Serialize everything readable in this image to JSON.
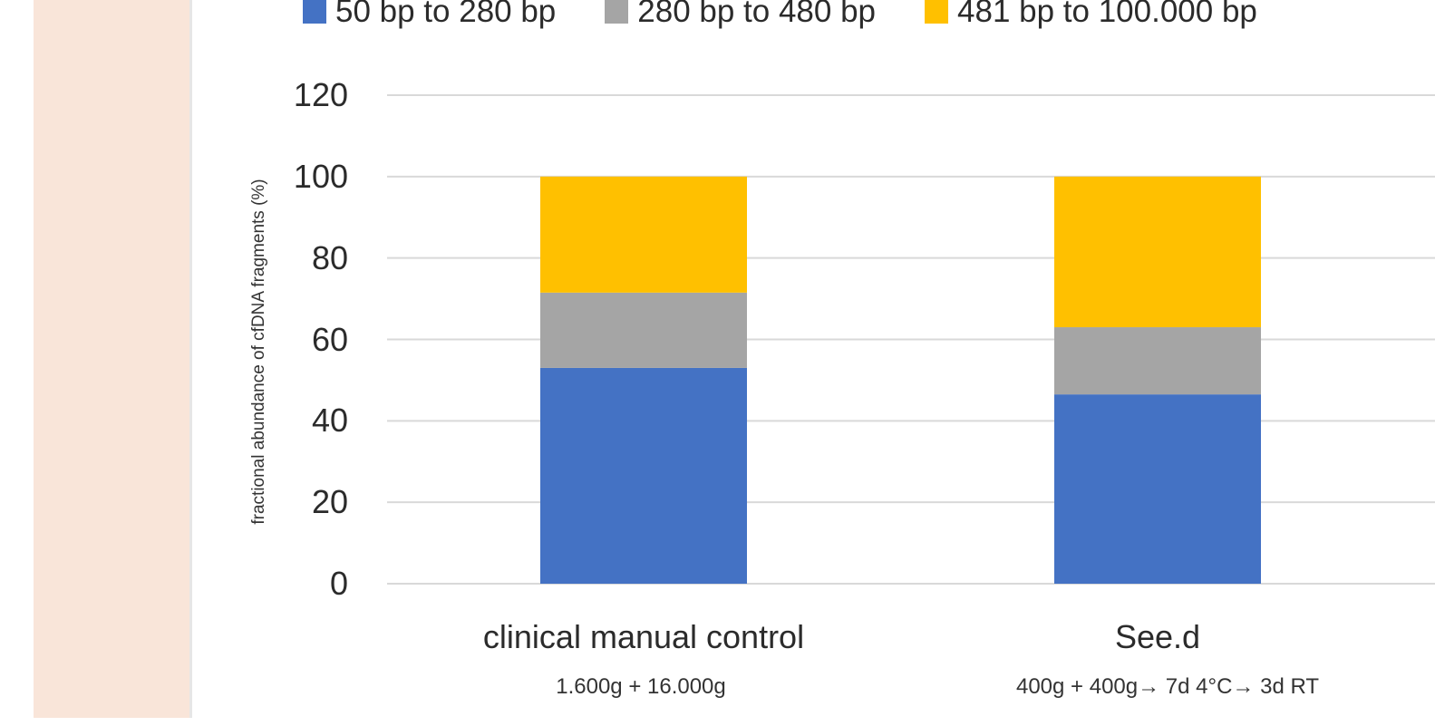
{
  "chart_data": {
    "type": "bar",
    "stacked": true,
    "ylabel": "fractional abundance of cfDNA fragments (%)",
    "xlabel": "",
    "ylim": [
      0,
      120
    ],
    "yticks": [
      0,
      20,
      40,
      60,
      80,
      100,
      120
    ],
    "grid": true,
    "legend_position": "top",
    "categories": [
      "clinical manual control",
      "See.d"
    ],
    "category_sublabels": [
      "1.600g +  16.000g",
      "400g + 400g→ 7d 4°C→ 3d RT"
    ],
    "series": [
      {
        "name": "50 bp to 280 bp",
        "color": "#4472c4",
        "values": [
          53,
          46.5
        ]
      },
      {
        "name": "280 bp to 480 bp",
        "color": "#a5a5a5",
        "values": [
          18.5,
          16.5
        ]
      },
      {
        "name": "481 bp to 100.000 bp",
        "color": "#ffc000",
        "values": [
          28.5,
          37
        ]
      }
    ]
  }
}
